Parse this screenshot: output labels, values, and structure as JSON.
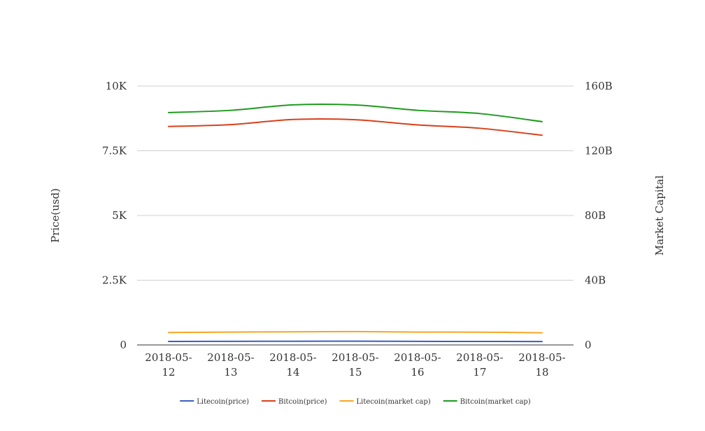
{
  "chart_data": {
    "type": "line",
    "title": "",
    "x": [
      "2018-05-12",
      "2018-05-13",
      "2018-05-14",
      "2018-05-15",
      "2018-05-16",
      "2018-05-17",
      "2018-05-18"
    ],
    "x_tick_labels": [
      [
        "2018-05-",
        "12"
      ],
      [
        "2018-05-",
        "13"
      ],
      [
        "2018-05-",
        "14"
      ],
      [
        "2018-05-",
        "15"
      ],
      [
        "2018-05-",
        "16"
      ],
      [
        "2018-05-",
        "17"
      ],
      [
        "2018-05-",
        "18"
      ]
    ],
    "y_left": {
      "label": "Price(usd)",
      "range": [
        0,
        10000
      ],
      "ticks": [
        0,
        2500,
        5000,
        7500,
        10000
      ],
      "tick_labels": [
        "0",
        "2.5K",
        "5K",
        "7.5K",
        "10K"
      ]
    },
    "y_right": {
      "label": "Market Capital",
      "range": [
        0,
        160000000000
      ],
      "ticks": [
        0,
        40000000000,
        80000000000,
        120000000000,
        160000000000
      ],
      "tick_labels": [
        "0",
        "40B",
        "80B",
        "120B",
        "160B"
      ]
    },
    "grid": true,
    "legend_position": "bottom",
    "series": [
      {
        "name": "Litecoin(price)",
        "axis": "left",
        "color": "#3b5fc0",
        "values": [
          136,
          140,
          142,
          145,
          138,
          135,
          132
        ]
      },
      {
        "name": "Bitcoin(price)",
        "axis": "left",
        "color": "#d9401a",
        "values": [
          8440,
          8510,
          8710,
          8700,
          8500,
          8370,
          8100
        ]
      },
      {
        "name": "Litecoin(market cap)",
        "axis": "right",
        "color": "#f5a623",
        "values": [
          7700000000,
          7950000000,
          8100000000,
          8250000000,
          7950000000,
          7900000000,
          7500000000
        ]
      },
      {
        "name": "Bitcoin(market cap)",
        "axis": "right",
        "color": "#1f9a1f",
        "values": [
          143600000000,
          145000000000,
          148400000000,
          148300000000,
          145000000000,
          143000000000,
          138000000000
        ]
      }
    ]
  }
}
